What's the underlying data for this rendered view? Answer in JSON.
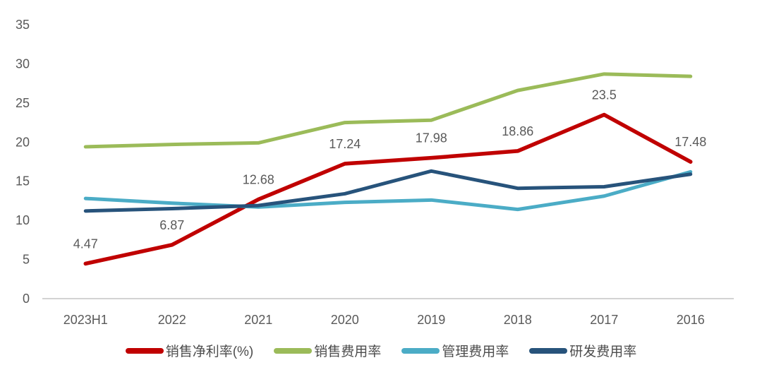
{
  "chart_data": {
    "type": "line",
    "categories": [
      "2023H1",
      "2022",
      "2021",
      "2020",
      "2019",
      "2018",
      "2017",
      "2016"
    ],
    "series": [
      {
        "key": "net-margin",
        "name": "销售净利率(%)",
        "color": "#c00000",
        "values": [
          4.47,
          6.87,
          12.68,
          17.24,
          17.98,
          18.86,
          23.5,
          17.48
        ],
        "data_labels": [
          "4.47",
          "6.87",
          "12.68",
          "17.24",
          "17.98",
          "18.86",
          "23.5",
          "17.48"
        ]
      },
      {
        "key": "selling-expense",
        "name": "销售费用率",
        "color": "#9bbb59",
        "values": [
          19.4,
          19.7,
          19.9,
          22.5,
          22.8,
          26.6,
          28.7,
          28.4
        ]
      },
      {
        "key": "admin-expense",
        "name": "管理费用率",
        "color": "#4bacc6",
        "values": [
          12.8,
          12.2,
          11.7,
          12.3,
          12.6,
          11.4,
          13.1,
          16.2
        ]
      },
      {
        "key": "rd-expense",
        "name": "研发费用率",
        "color": "#27537b",
        "values": [
          11.2,
          11.5,
          11.9,
          13.4,
          16.3,
          14.1,
          14.3,
          15.9
        ]
      }
    ],
    "title": "",
    "xlabel": "",
    "ylabel": "",
    "ylim": [
      0,
      35
    ],
    "y_ticks": [
      0,
      5,
      10,
      15,
      20,
      25,
      30,
      35
    ],
    "grid": false,
    "legend_position": "bottom"
  },
  "style": {
    "axis_line_color": "#d3d3d3",
    "tick_label_color": "#595959",
    "data_label_color": "#595959",
    "legend_text_color": "#4d4d4d",
    "background": "#ffffff"
  }
}
